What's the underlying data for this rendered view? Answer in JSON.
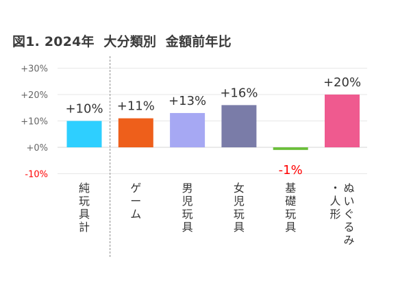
{
  "chart_data": {
    "type": "bar",
    "title": "図1. 2024年  大分類別  金額前年比",
    "categories": [
      "純玩具計",
      "ゲーム",
      "男児玩具",
      "女児玩具",
      "基礎玩具",
      "ぬいぐるみ・人形"
    ],
    "category_columns": [
      [
        "純玩具計"
      ],
      [
        "ゲーム"
      ],
      [
        "男児玩具"
      ],
      [
        "女児玩具"
      ],
      [
        "基礎玩具"
      ],
      [
        "ぬいぐるみ",
        "・人形"
      ]
    ],
    "values": [
      10,
      11,
      13,
      16,
      -1,
      20
    ],
    "data_labels": [
      "+10%",
      "+11%",
      "+13%",
      "+16%",
      "-1%",
      "+20%"
    ],
    "colors": [
      "#2ecfff",
      "#ee5f1b",
      "#a6a8f3",
      "#7a7ca8",
      "#6bbf3a",
      "#ef5a8f"
    ],
    "ylim": [
      -10,
      30
    ],
    "yticks": [
      {
        "value": 30,
        "label": "+30%"
      },
      {
        "value": 20,
        "label": "+20%"
      },
      {
        "value": 10,
        "label": "+10%"
      },
      {
        "value": 0,
        "label": "+0%"
      },
      {
        "value": -10,
        "label": "-10%"
      }
    ],
    "negative_color": "#ff0000",
    "grid": true,
    "separator_after_index": 0
  }
}
